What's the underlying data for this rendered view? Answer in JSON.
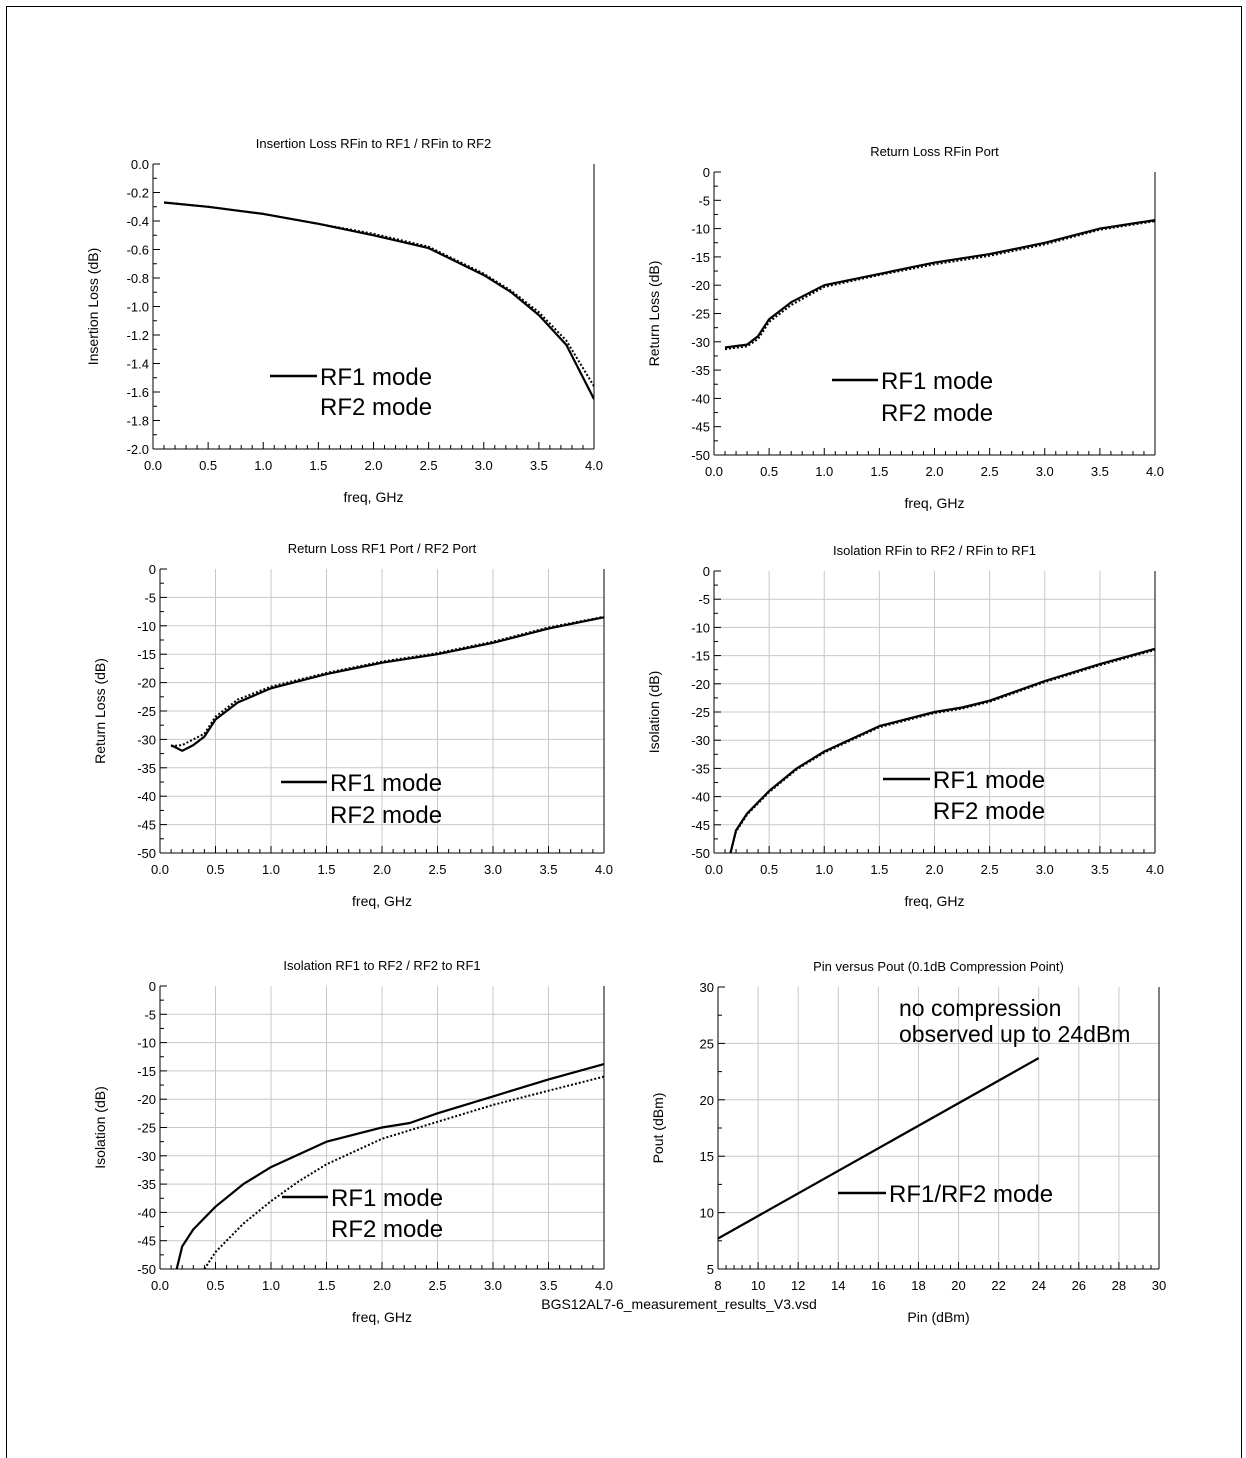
{
  "footer": "BGS12AL7-6_measurement_results_V3.vsd",
  "charts": [
    {
      "title": "Insertion Loss RFin to RF1 / RFin to RF2",
      "xlabel": "freq, GHz",
      "ylabel": "Insertion Loss (dB)",
      "legend": [
        "RF1 mode",
        "RF2 mode"
      ],
      "annotation": []
    },
    {
      "title": "Return Loss  RFin Port",
      "xlabel": "freq, GHz",
      "ylabel": "Return Loss (dB)",
      "legend": [
        "RF1 mode",
        "RF2 mode"
      ],
      "annotation": []
    },
    {
      "title": "Return Loss  RF1 Port / RF2 Port",
      "xlabel": "freq, GHz",
      "ylabel": "Return Loss (dB)",
      "legend": [
        "RF1 mode",
        "RF2 mode"
      ],
      "annotation": []
    },
    {
      "title": "Isolation RFin to RF2 / RFin to RF1",
      "xlabel": "freq, GHz",
      "ylabel": "Isolation (dB)",
      "legend": [
        "RF1 mode",
        "RF2 mode"
      ],
      "annotation": []
    },
    {
      "title": "Isolation RF1 to RF2 / RF2 to RF1",
      "xlabel": "freq, GHz",
      "ylabel": "Isolation (dB)",
      "legend": [
        "RF1 mode",
        "RF2 mode"
      ],
      "annotation": []
    },
    {
      "title": "Pin versus Pout (0.1dB Compression Point)",
      "xlabel": "Pin (dBm)",
      "ylabel": "Pout (dBm)",
      "legend": [
        "RF1/RF2 mode"
      ],
      "annotation": [
        "no compression",
        "observed up to 24dBm"
      ]
    }
  ],
  "chart_data": [
    {
      "type": "line",
      "title": "Insertion Loss RFin to RF1 / RFin to RF2",
      "xlabel": "freq, GHz",
      "ylabel": "Insertion Loss (dB)",
      "xlim": [
        0,
        4
      ],
      "ylim": [
        -2,
        0
      ],
      "xticks": [
        "0.0",
        "0.5",
        "1.0",
        "1.5",
        "2.0",
        "2.5",
        "3.0",
        "3.5",
        "4.0"
      ],
      "yticks": [
        "0.0",
        "-0.2",
        "-0.4",
        "-0.6",
        "-0.8",
        "-1.0",
        "-1.2",
        "-1.4",
        "-1.6",
        "-1.8",
        "-2.0"
      ],
      "grid": false,
      "series": [
        {
          "name": "RF1 mode",
          "x": [
            0.1,
            0.5,
            1.0,
            1.5,
            2.0,
            2.5,
            3.0,
            3.25,
            3.5,
            3.75,
            4.0
          ],
          "y": [
            -0.27,
            -0.3,
            -0.35,
            -0.42,
            -0.5,
            -0.59,
            -0.78,
            -0.9,
            -1.06,
            -1.27,
            -1.65
          ]
        },
        {
          "name": "RF2 mode",
          "x": [
            0.1,
            0.5,
            1.0,
            1.5,
            2.0,
            2.5,
            3.0,
            3.25,
            3.5,
            3.75,
            4.0
          ],
          "y": [
            -0.27,
            -0.3,
            -0.35,
            -0.42,
            -0.49,
            -0.58,
            -0.77,
            -0.89,
            -1.04,
            -1.24,
            -1.56
          ]
        }
      ]
    },
    {
      "type": "line",
      "title": "Return Loss  RFin Port",
      "xlabel": "freq, GHz",
      "ylabel": "Return Loss (dB)",
      "xlim": [
        0,
        4
      ],
      "ylim": [
        -50,
        0
      ],
      "xticks": [
        "0.0",
        "0.5",
        "1.0",
        "1.5",
        "2.0",
        "2.5",
        "3.0",
        "3.5",
        "4.0"
      ],
      "yticks": [
        "0",
        "-5",
        "-10",
        "-15",
        "-20",
        "-25",
        "-30",
        "-35",
        "-40",
        "-45",
        "-50"
      ],
      "grid": false,
      "series": [
        {
          "name": "RF1 mode",
          "x": [
            0.1,
            0.3,
            0.4,
            0.5,
            0.7,
            1.0,
            1.5,
            2.0,
            2.5,
            3.0,
            3.5,
            4.0
          ],
          "y": [
            -31,
            -30.5,
            -29,
            -26,
            -23,
            -20,
            -18,
            -16,
            -14.5,
            -12.5,
            -10,
            -8.5
          ]
        },
        {
          "name": "RF2 mode",
          "x": [
            0.1,
            0.3,
            0.4,
            0.5,
            0.7,
            1.0,
            1.5,
            2.0,
            2.5,
            3.0,
            3.5,
            4.0
          ],
          "y": [
            -31.3,
            -30.8,
            -29.5,
            -26.5,
            -23.5,
            -20.3,
            -18.2,
            -16.3,
            -14.8,
            -12.8,
            -10.2,
            -8.7
          ]
        }
      ]
    },
    {
      "type": "line",
      "title": "Return Loss  RF1 Port / RF2 Port",
      "xlabel": "freq, GHz",
      "ylabel": "Return Loss (dB)",
      "xlim": [
        0,
        4
      ],
      "ylim": [
        -50,
        0
      ],
      "xticks": [
        "0.0",
        "0.5",
        "1.0",
        "1.5",
        "2.0",
        "2.5",
        "3.0",
        "3.5",
        "4.0"
      ],
      "yticks": [
        "0",
        "-5",
        "-10",
        "-15",
        "-20",
        "-25",
        "-30",
        "-35",
        "-40",
        "-45",
        "-50"
      ],
      "grid": true,
      "series": [
        {
          "name": "RF1 mode",
          "x": [
            0.1,
            0.2,
            0.3,
            0.4,
            0.5,
            0.7,
            1.0,
            1.5,
            2.0,
            2.5,
            3.0,
            3.5,
            4.0
          ],
          "y": [
            -31,
            -32,
            -31,
            -29.5,
            -26.5,
            -23.5,
            -21,
            -18.5,
            -16.5,
            -15,
            -13,
            -10.5,
            -8.5
          ]
        },
        {
          "name": "RF2 mode",
          "x": [
            0.1,
            0.2,
            0.3,
            0.4,
            0.5,
            0.7,
            1.0,
            1.5,
            2.0,
            2.5,
            3.0,
            3.5,
            4.0
          ],
          "y": [
            -31.2,
            -31,
            -30,
            -29,
            -26,
            -23,
            -20.7,
            -18.3,
            -16.3,
            -14.8,
            -12.8,
            -10.3,
            -8.4
          ]
        }
      ]
    },
    {
      "type": "line",
      "title": "Isolation RFin to RF2 / RFin to RF1",
      "xlabel": "freq, GHz",
      "ylabel": "Isolation (dB)",
      "xlim": [
        0,
        4
      ],
      "ylim": [
        -50,
        0
      ],
      "xticks": [
        "0.0",
        "0.5",
        "1.0",
        "1.5",
        "2.0",
        "2.5",
        "3.0",
        "3.5",
        "4.0"
      ],
      "yticks": [
        "0",
        "-5",
        "-10",
        "-15",
        "-20",
        "-25",
        "-30",
        "-35",
        "-40",
        "-45",
        "-50"
      ],
      "grid": true,
      "series": [
        {
          "name": "RF1 mode",
          "x": [
            0.15,
            0.2,
            0.3,
            0.5,
            0.75,
            1.0,
            1.5,
            2.0,
            2.25,
            2.5,
            3.0,
            3.5,
            4.0
          ],
          "y": [
            -50,
            -46,
            -43,
            -39,
            -35,
            -32,
            -27.5,
            -25,
            -24.2,
            -23,
            -19.5,
            -16.5,
            -13.8
          ]
        },
        {
          "name": "RF2 mode",
          "x": [
            0.15,
            0.2,
            0.3,
            0.5,
            0.75,
            1.0,
            1.5,
            2.0,
            2.25,
            2.5,
            3.0,
            3.5,
            4.0
          ],
          "y": [
            -50,
            -46.2,
            -43.2,
            -39.2,
            -35.2,
            -32.2,
            -27.7,
            -25.2,
            -24.4,
            -23.2,
            -19.7,
            -16.7,
            -14
          ]
        }
      ]
    },
    {
      "type": "line",
      "title": "Isolation RF1 to RF2 / RF2 to RF1",
      "xlabel": "freq, GHz",
      "ylabel": "Isolation (dB)",
      "xlim": [
        0,
        4
      ],
      "ylim": [
        -50,
        0
      ],
      "xticks": [
        "0.0",
        "0.5",
        "1.0",
        "1.5",
        "2.0",
        "2.5",
        "3.0",
        "3.5",
        "4.0"
      ],
      "yticks": [
        "0",
        "-5",
        "-10",
        "-15",
        "-20",
        "-25",
        "-30",
        "-35",
        "-40",
        "-45",
        "-50"
      ],
      "grid": true,
      "series": [
        {
          "name": "RF1 mode",
          "x": [
            0.15,
            0.2,
            0.3,
            0.5,
            0.75,
            1.0,
            1.5,
            2.0,
            2.25,
            2.5,
            3.0,
            3.5,
            4.0
          ],
          "y": [
            -50,
            -46,
            -43,
            -39,
            -35,
            -32,
            -27.5,
            -25,
            -24.2,
            -22.5,
            -19.5,
            -16.5,
            -13.8
          ]
        },
        {
          "name": "RF2 mode",
          "x": [
            0.4,
            0.5,
            0.75,
            1.0,
            1.25,
            1.5,
            2.0,
            2.5,
            3.0,
            3.5,
            4.0
          ],
          "y": [
            -50,
            -47,
            -42,
            -38,
            -34.5,
            -31.5,
            -27,
            -24,
            -21,
            -18.5,
            -16
          ]
        }
      ]
    },
    {
      "type": "line",
      "title": "Pin versus Pout (0.1dB Compression Point)",
      "xlabel": "Pin (dBm)",
      "ylabel": "Pout (dBm)",
      "xlim": [
        8,
        30
      ],
      "ylim": [
        5,
        30
      ],
      "xticks": [
        "8",
        "10",
        "12",
        "14",
        "16",
        "18",
        "20",
        "22",
        "24",
        "26",
        "28",
        "30"
      ],
      "yticks": [
        "30",
        "25",
        "20",
        "15",
        "10",
        "5"
      ],
      "grid": true,
      "series": [
        {
          "name": "RF1/RF2 mode",
          "x": [
            8,
            24
          ],
          "y": [
            7.7,
            23.7
          ]
        }
      ]
    }
  ]
}
